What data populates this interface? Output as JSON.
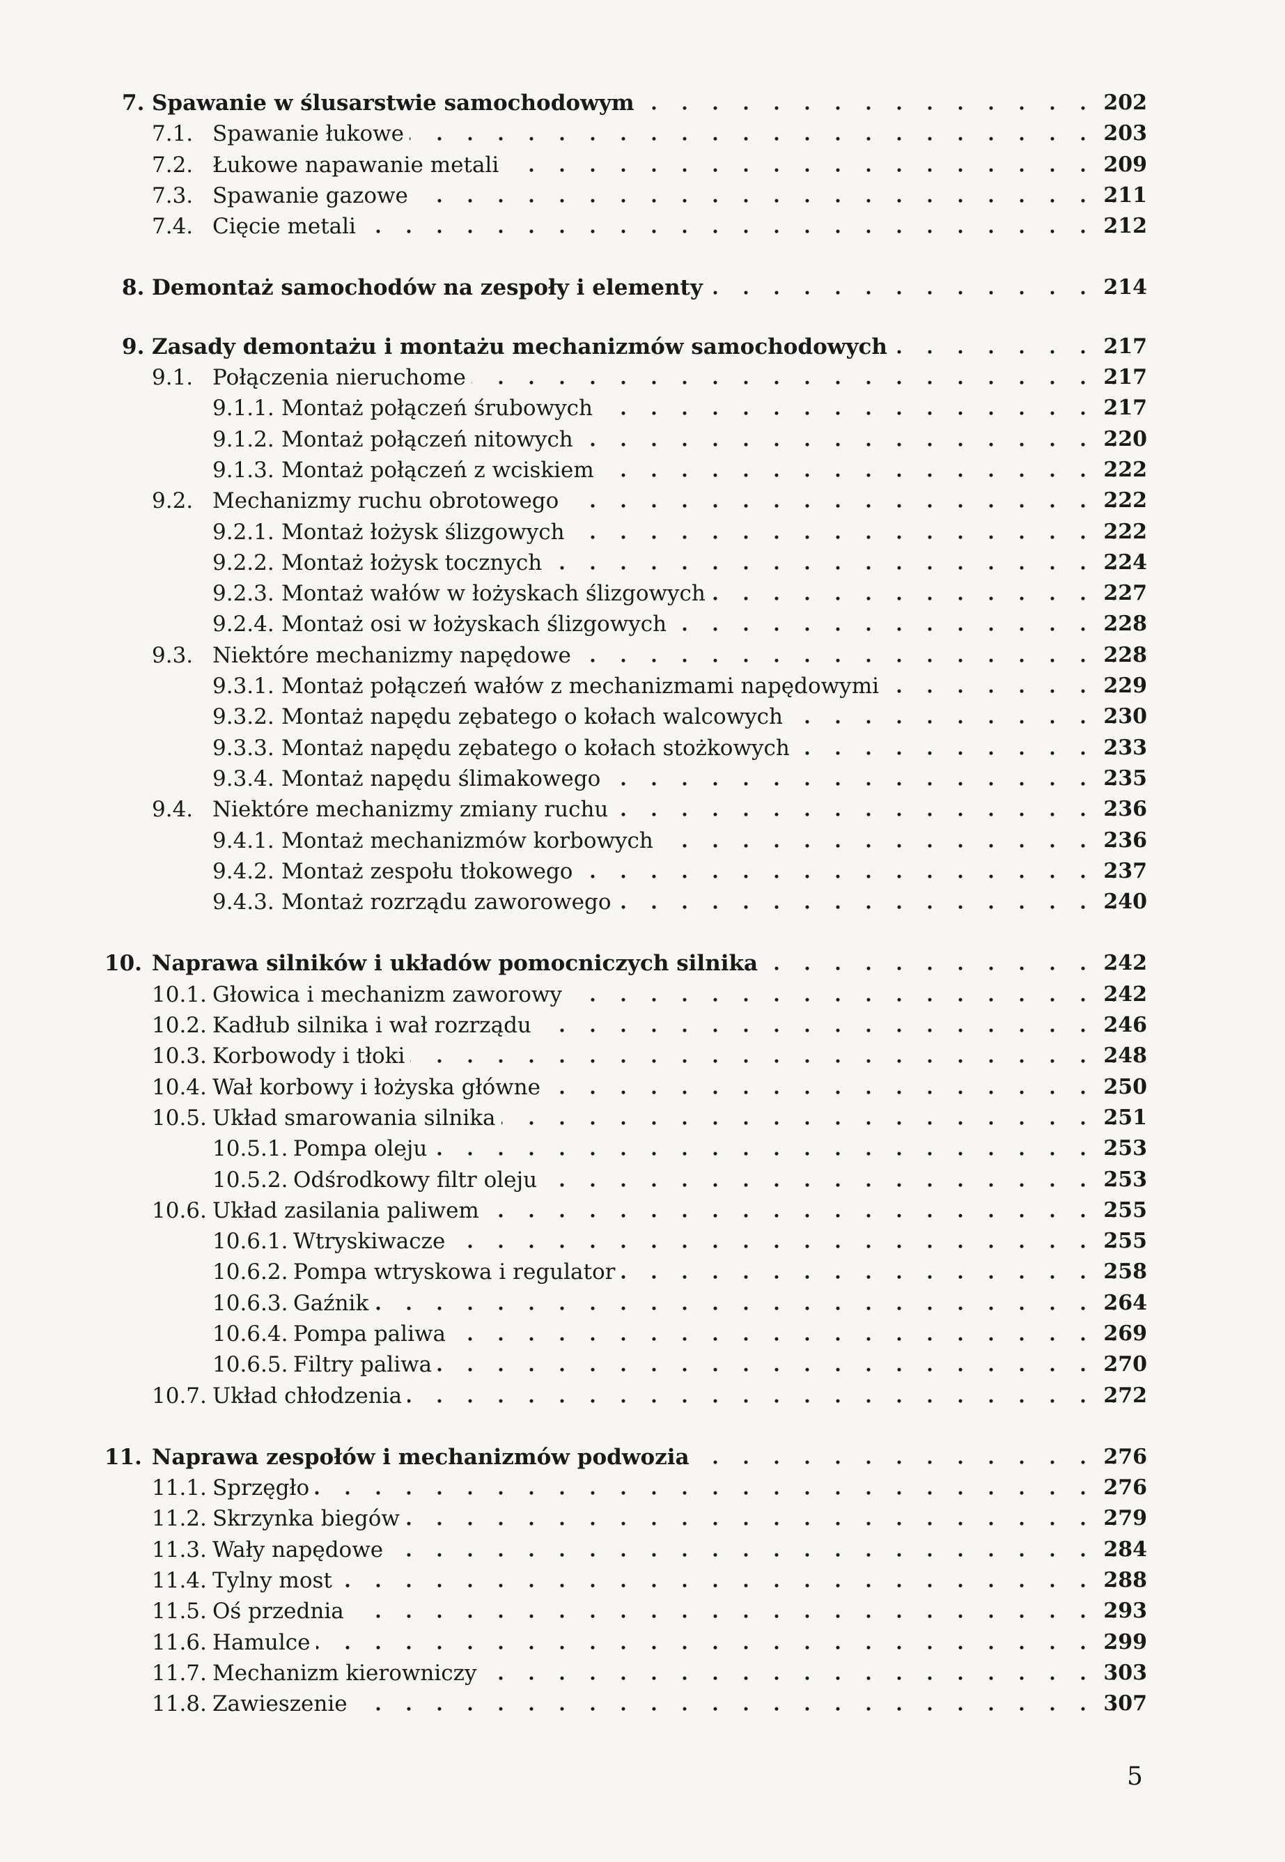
{
  "toc": [
    {
      "num": "7.",
      "title": "Spawanie w ślusarstwie samochodowym",
      "page": "202",
      "level": 0
    },
    {
      "num": "7.1.",
      "title": "Spawanie łukowe",
      "page": "203",
      "level": 1
    },
    {
      "num": "7.2.",
      "title": "Łukowe napawanie metali",
      "page": "209",
      "level": 1
    },
    {
      "num": "7.3.",
      "title": "Spawanie gazowe",
      "page": "211",
      "level": 1
    },
    {
      "num": "7.4.",
      "title": "Cięcie metali",
      "page": "212",
      "level": 1
    },
    {
      "num": "8.",
      "title": "Demontaż samochodów na zespoły i elementy",
      "page": "214",
      "level": 0
    },
    {
      "num": "9.",
      "title": "Zasady demontażu i montażu mechanizmów samochodowych",
      "page": "217",
      "level": 0
    },
    {
      "num": "9.1.",
      "title": "Połączenia nieruchome",
      "page": "217",
      "level": 1
    },
    {
      "num": "9.1.1.",
      "title": "Montaż połączeń śrubowych",
      "page": "217",
      "level": 2
    },
    {
      "num": "9.1.2.",
      "title": "Montaż połączeń nitowych",
      "page": "220",
      "level": 2
    },
    {
      "num": "9.1.3.",
      "title": "Montaż połączeń z wciskiem",
      "page": "222",
      "level": 2
    },
    {
      "num": "9.2.",
      "title": "Mechanizmy ruchu obrotowego",
      "page": "222",
      "level": 1
    },
    {
      "num": "9.2.1.",
      "title": "Montaż łożysk ślizgowych",
      "page": "222",
      "level": 2
    },
    {
      "num": "9.2.2.",
      "title": "Montaż łożysk tocznych",
      "page": "224",
      "level": 2
    },
    {
      "num": "9.2.3.",
      "title": "Montaż wałów w łożyskach ślizgowych",
      "page": "227",
      "level": 2
    },
    {
      "num": "9.2.4.",
      "title": "Montaż osi w łożyskach ślizgowych",
      "page": "228",
      "level": 2
    },
    {
      "num": "9.3.",
      "title": "Niektóre mechanizmy napędowe",
      "page": "228",
      "level": 1
    },
    {
      "num": "9.3.1.",
      "title": "Montaż połączeń wałów z mechanizmami napędowymi",
      "page": "229",
      "level": 2
    },
    {
      "num": "9.3.2.",
      "title": "Montaż napędu zębatego o kołach walcowych",
      "page": "230",
      "level": 2
    },
    {
      "num": "9.3.3.",
      "title": "Montaż napędu zębatego o kołach stożkowych",
      "page": "233",
      "level": 2
    },
    {
      "num": "9.3.4.",
      "title": "Montaż napędu ślimakowego",
      "page": "235",
      "level": 2
    },
    {
      "num": "9.4.",
      "title": "Niektóre mechanizmy zmiany ruchu",
      "page": "236",
      "level": 1
    },
    {
      "num": "9.4.1.",
      "title": "Montaż mechanizmów korbowych",
      "page": "236",
      "level": 2
    },
    {
      "num": "9.4.2.",
      "title": "Montaż zespołu tłokowego",
      "page": "237",
      "level": 2
    },
    {
      "num": "9.4.3.",
      "title": "Montaż rozrządu zaworowego",
      "page": "240",
      "level": 2
    },
    {
      "num": "10.",
      "title": "Naprawa silników i układów pomocniczych silnika",
      "page": "242",
      "level": 0
    },
    {
      "num": "10.1.",
      "title": "Głowica i mechanizm zaworowy",
      "page": "242",
      "level": 1
    },
    {
      "num": "10.2.",
      "title": "Kadłub silnika i wał rozrządu",
      "page": "246",
      "level": 1
    },
    {
      "num": "10.3.",
      "title": "Korbowody i tłoki",
      "page": "248",
      "level": 1
    },
    {
      "num": "10.4.",
      "title": "Wał korbowy i łożyska główne",
      "page": "250",
      "level": 1
    },
    {
      "num": "10.5.",
      "title": "Układ smarowania silnika",
      "page": "251",
      "level": 1
    },
    {
      "num": "10.5.1.",
      "title": "Pompa oleju",
      "page": "253",
      "level": 2
    },
    {
      "num": "10.5.2.",
      "title": "Odśrodkowy filtr oleju",
      "page": "253",
      "level": 2
    },
    {
      "num": "10.6.",
      "title": "Układ zasilania paliwem",
      "page": "255",
      "level": 1
    },
    {
      "num": "10.6.1.",
      "title": "Wtryskiwacze",
      "page": "255",
      "level": 2
    },
    {
      "num": "10.6.2.",
      "title": "Pompa wtryskowa i regulator",
      "page": "258",
      "level": 2
    },
    {
      "num": "10.6.3.",
      "title": "Gaźnik",
      "page": "264",
      "level": 2
    },
    {
      "num": "10.6.4.",
      "title": "Pompa paliwa",
      "page": "269",
      "level": 2
    },
    {
      "num": "10.6.5.",
      "title": "Filtry paliwa",
      "page": "270",
      "level": 2
    },
    {
      "num": "10.7.",
      "title": "Układ chłodzenia",
      "page": "272",
      "level": 1
    },
    {
      "num": "11.",
      "title": "Naprawa zespołów i mechanizmów podwozia",
      "page": "276",
      "level": 0
    },
    {
      "num": "11.1.",
      "title": "Sprzęgło",
      "page": "276",
      "level": 1
    },
    {
      "num": "11.2.",
      "title": "Skrzynka biegów",
      "page": "279",
      "level": 1
    },
    {
      "num": "11.3.",
      "title": "Wały napędowe",
      "page": "284",
      "level": 1
    },
    {
      "num": "11.4.",
      "title": "Tylny most",
      "page": "288",
      "level": 1
    },
    {
      "num": "11.5.",
      "title": "Oś przednia",
      "page": "293",
      "level": 1
    },
    {
      "num": "11.6.",
      "title": "Hamulce",
      "page": "299",
      "level": 1
    },
    {
      "num": "11.7.",
      "title": "Mechanizm kierowniczy",
      "page": "303",
      "level": 1
    },
    {
      "num": "11.8.",
      "title": "Zawieszenie",
      "page": "307",
      "level": 1
    }
  ],
  "page_number": "5"
}
